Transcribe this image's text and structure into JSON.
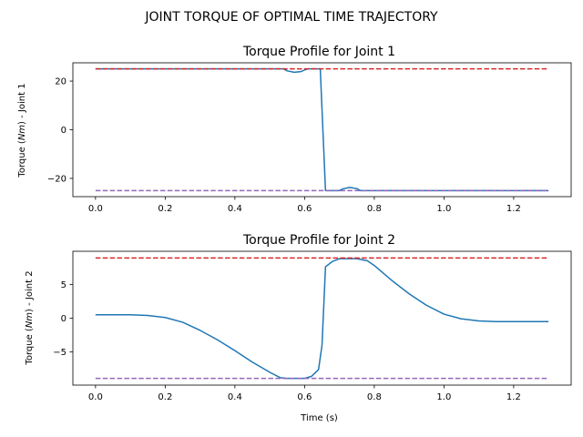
{
  "figure": {
    "suptitle": "JOINT TORQUE OF OPTIMAL TIME TRAJECTORY"
  },
  "colors": {
    "series": "#1f77b4",
    "upper_limit": "#d62728",
    "lower_limit": "#9467bd",
    "background": "#ffffff",
    "axes": "#000000"
  },
  "chart_data": [
    {
      "type": "line",
      "title": "Torque Profile for Joint 1",
      "xlabel": "",
      "ylabel_prefix": "Torque (",
      "ylabel_unit": "Nm",
      "ylabel_suffix": ") - Joint 1",
      "xlim": [
        -0.065,
        1.365
      ],
      "ylim": [
        -27.5,
        27.5
      ],
      "xticks": [
        0.0,
        0.2,
        0.4,
        0.6,
        0.8,
        1.0,
        1.2
      ],
      "xtick_labels": [
        "0.0",
        "0.2",
        "0.4",
        "0.6",
        "0.8",
        "1.0",
        "1.2"
      ],
      "yticks": [
        20,
        0,
        -20
      ],
      "ytick_labels": [
        "20",
        "0",
        "−20"
      ],
      "grid": false,
      "series": [
        {
          "role": "torque",
          "style": "solid",
          "x": [
            0.0,
            0.1,
            0.2,
            0.3,
            0.4,
            0.5,
            0.54,
            0.55,
            0.57,
            0.59,
            0.6,
            0.61,
            0.63,
            0.645,
            0.66,
            0.68,
            0.7,
            0.71,
            0.73,
            0.75,
            0.76,
            0.8,
            0.9,
            1.0,
            1.1,
            1.2,
            1.3
          ],
          "y": [
            25,
            25,
            25,
            25,
            25,
            25,
            25,
            24.2,
            23.6,
            23.9,
            24.6,
            25,
            25,
            25,
            -25,
            -25,
            -25,
            -24.3,
            -23.7,
            -24.2,
            -25,
            -25,
            -25,
            -25,
            -25,
            -25,
            -25
          ]
        },
        {
          "role": "upper-limit",
          "style": "dashed",
          "x": [
            0.0,
            1.3
          ],
          "y": [
            25,
            25
          ]
        },
        {
          "role": "lower-limit",
          "style": "dashed",
          "x": [
            0.0,
            1.3
          ],
          "y": [
            -25,
            -25
          ]
        }
      ]
    },
    {
      "type": "line",
      "title": "Torque Profile for Joint 2",
      "xlabel": "Time (s)",
      "ylabel_prefix": "Torque (",
      "ylabel_unit": "Nm",
      "ylabel_suffix": ") - Joint 2",
      "xlim": [
        -0.065,
        1.365
      ],
      "ylim": [
        -9.9,
        9.9
      ],
      "xticks": [
        0.0,
        0.2,
        0.4,
        0.6,
        0.8,
        1.0,
        1.2
      ],
      "xtick_labels": [
        "0.0",
        "0.2",
        "0.4",
        "0.6",
        "0.8",
        "1.0",
        "1.2"
      ],
      "yticks": [
        5,
        0,
        -5
      ],
      "ytick_labels": [
        "5",
        "0",
        "−5"
      ],
      "grid": false,
      "series": [
        {
          "role": "torque",
          "style": "solid",
          "x": [
            0.0,
            0.1,
            0.15,
            0.2,
            0.25,
            0.3,
            0.35,
            0.4,
            0.45,
            0.5,
            0.53,
            0.55,
            0.6,
            0.62,
            0.64,
            0.65,
            0.66,
            0.68,
            0.7,
            0.75,
            0.78,
            0.8,
            0.85,
            0.9,
            0.95,
            1.0,
            1.05,
            1.1,
            1.15,
            1.2,
            1.25,
            1.3
          ],
          "y": [
            0.5,
            0.5,
            0.4,
            0.1,
            -0.6,
            -1.8,
            -3.2,
            -4.8,
            -6.5,
            -8.0,
            -8.8,
            -8.9,
            -8.9,
            -8.6,
            -7.6,
            -4.0,
            7.6,
            8.4,
            8.8,
            8.8,
            8.5,
            7.8,
            5.6,
            3.6,
            1.9,
            0.6,
            -0.1,
            -0.4,
            -0.5,
            -0.5,
            -0.5,
            -0.5
          ]
        },
        {
          "role": "upper-limit",
          "style": "dashed",
          "x": [
            0.0,
            1.3
          ],
          "y": [
            8.9,
            8.9
          ]
        },
        {
          "role": "lower-limit",
          "style": "dashed",
          "x": [
            0.0,
            1.3
          ],
          "y": [
            -8.9,
            -8.9
          ]
        }
      ]
    }
  ]
}
